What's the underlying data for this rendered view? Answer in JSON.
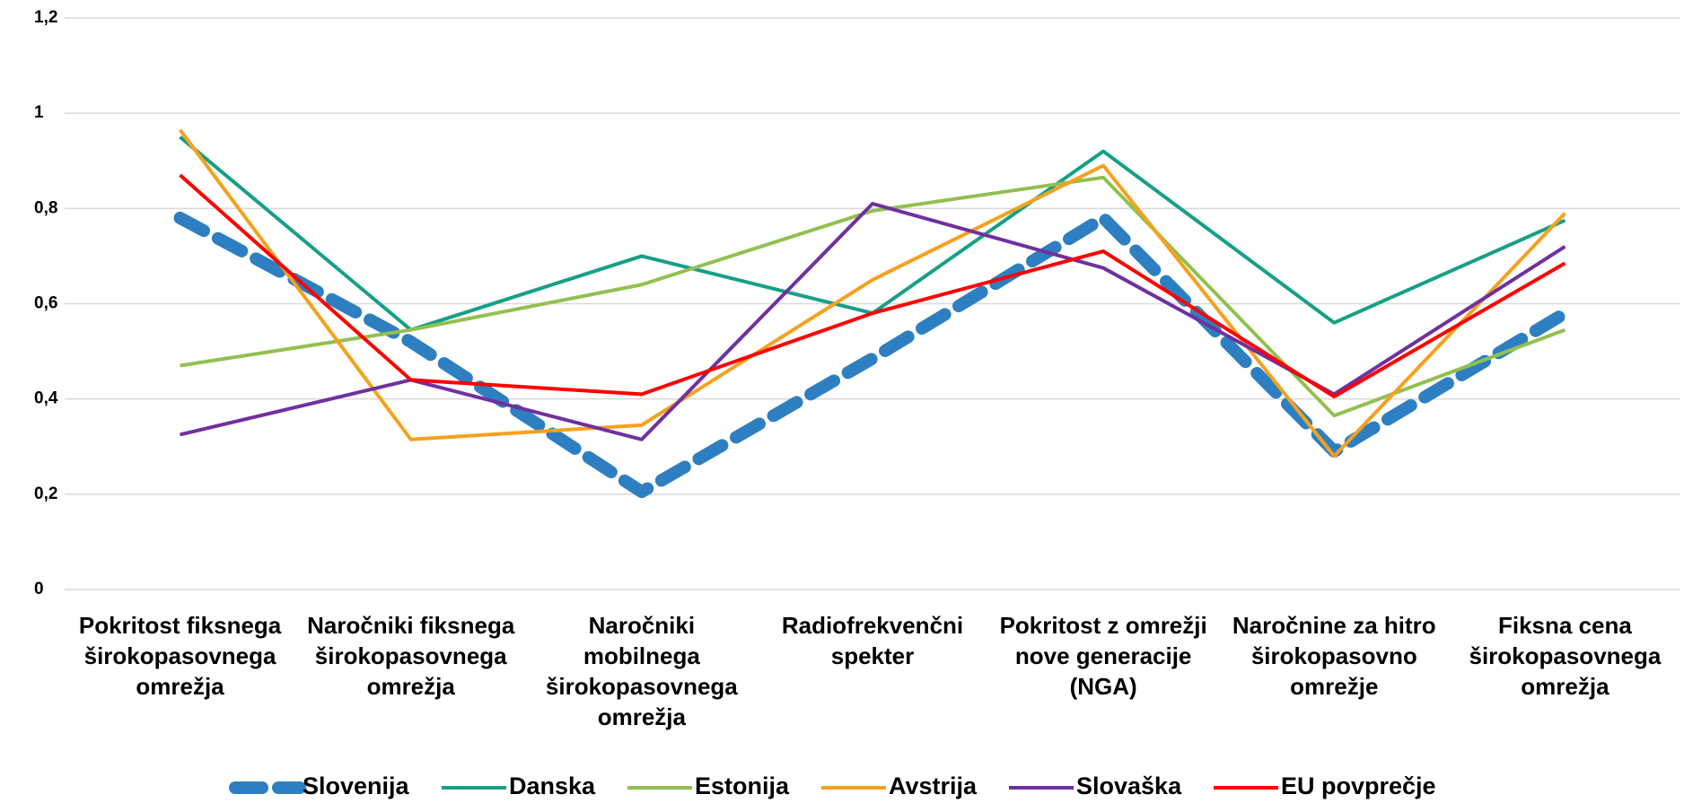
{
  "chart_data": {
    "type": "line",
    "categories": [
      "Pokritost fiksnega širokopasovnega omrežja",
      "Naročniki fiksnega širokopasovnega omrežja",
      "Naročniki mobilnega širokopasovnega omrežja",
      "Radiofrekvenčni spekter",
      "Pokritost z omrežji nove generacije (NGA)",
      "Naročnine za hitro širokopasovno omrežje",
      "Fiksna cena širokopasovnega omrežja"
    ],
    "series": [
      {
        "name": "Slovenija",
        "color": "#2e7fc1",
        "dashed": true,
        "values": [
          0.78,
          0.52,
          0.205,
          0.485,
          0.78,
          0.29,
          0.58
        ]
      },
      {
        "name": "Danska",
        "color": "#16a085",
        "values": [
          0.95,
          0.545,
          0.7,
          0.58,
          0.92,
          0.56,
          0.775
        ]
      },
      {
        "name": "Estonija",
        "color": "#92c050",
        "values": [
          0.47,
          0.545,
          0.64,
          0.795,
          0.865,
          0.365,
          0.545
        ]
      },
      {
        "name": "Avstrija",
        "color": "#f5a11f",
        "values": [
          0.965,
          0.315,
          0.345,
          0.65,
          0.89,
          0.28,
          0.79
        ]
      },
      {
        "name": "Slovaška",
        "color": "#7030a0",
        "values": [
          0.325,
          0.44,
          0.315,
          0.81,
          0.675,
          0.41,
          0.72
        ]
      },
      {
        "name": "EU povprečje",
        "color": "#ff0000",
        "values": [
          0.87,
          0.44,
          0.41,
          0.58,
          0.71,
          0.405,
          0.685
        ]
      }
    ],
    "ylim": [
      0,
      1.2
    ],
    "yticks": [
      0,
      {
        "value": 0.2,
        "label": "0,2"
      },
      {
        "value": 0.4,
        "label": "0,4"
      },
      {
        "value": 0.6,
        "label": "0,6"
      },
      {
        "value": 0.8,
        "label": "0,8"
      },
      1,
      {
        "value": 1.2,
        "label": "1,2"
      }
    ],
    "grid": true,
    "legend": "bottom"
  }
}
